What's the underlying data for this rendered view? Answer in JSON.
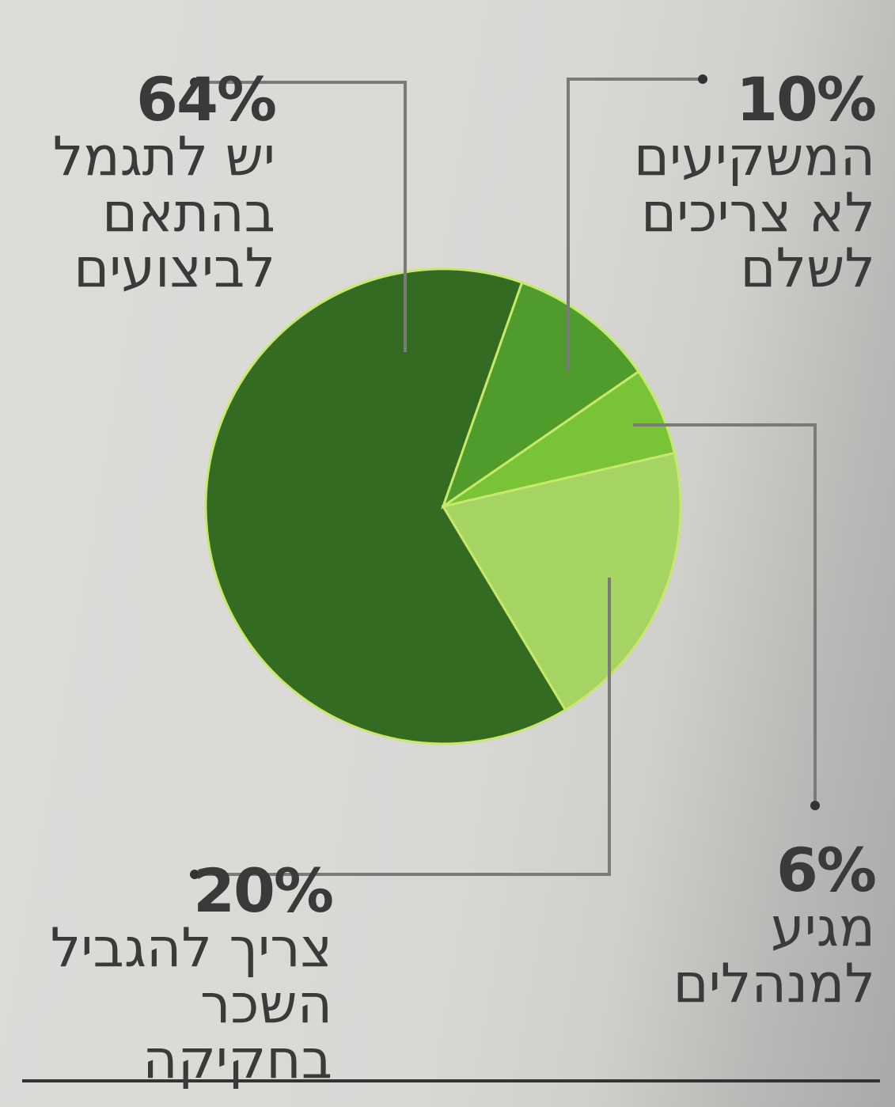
{
  "chart_data": {
    "type": "pie",
    "slices": [
      {
        "label": "יש לתגמל בהתאם לביצועים",
        "value": 64,
        "value_label": "64%",
        "lines": [
          "יש לתגמל",
          "בהתאם",
          "לביצועים"
        ],
        "color": "#336b22"
      },
      {
        "label": "המשקיעים לא צריכים לשלם",
        "value": 10,
        "value_label": "10%",
        "lines": [
          "המשקיעים",
          "לא צריכים",
          "לשלם"
        ],
        "color": "#4f9c2c"
      },
      {
        "label": "מגיע למנהלים",
        "value": 6,
        "value_label": "6%",
        "lines": [
          "מגיע",
          "למנהלים"
        ],
        "color": "#79c436"
      },
      {
        "label": "צריך להגביל השכר בחקיקה",
        "value": 20,
        "value_label": "20%",
        "lines": [
          "צריך להגביל",
          "השכר בחקיקה"
        ],
        "color": "#a6d462"
      }
    ],
    "legend": "none",
    "title": "",
    "xlabel": "",
    "ylabel": ""
  }
}
